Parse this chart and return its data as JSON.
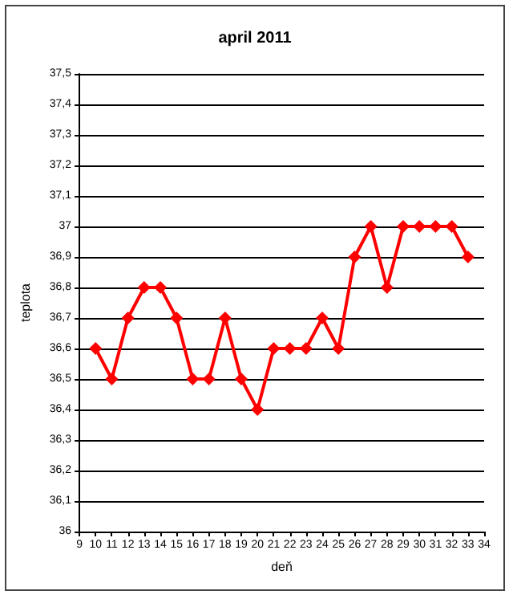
{
  "chart_data": {
    "type": "line",
    "title": "april 2011",
    "xlabel": "deň",
    "ylabel": "teplota",
    "x": [
      10,
      11,
      12,
      13,
      14,
      15,
      16,
      17,
      18,
      19,
      20,
      21,
      22,
      23,
      24,
      25,
      26,
      27,
      28,
      29,
      30,
      31,
      32,
      33
    ],
    "series": [
      {
        "color": "#ff0000",
        "values": [
          36.6,
          36.5,
          36.7,
          36.8,
          36.8,
          36.7,
          36.5,
          36.5,
          36.7,
          36.5,
          36.4,
          36.6,
          36.6,
          36.6,
          36.7,
          36.6,
          36.9,
          37,
          36.8,
          37,
          37,
          37,
          37,
          36.9
        ]
      }
    ],
    "xlim": [
      9,
      34
    ],
    "xticks": [
      9,
      10,
      11,
      12,
      13,
      14,
      15,
      16,
      17,
      18,
      19,
      20,
      21,
      22,
      23,
      24,
      25,
      26,
      27,
      28,
      29,
      30,
      31,
      32,
      33,
      34
    ],
    "ylim": [
      36,
      37.5
    ],
    "yticks": [
      {
        "value": 36,
        "label": "36"
      },
      {
        "value": 36.1,
        "label": "36,1"
      },
      {
        "value": 36.2,
        "label": "36,2"
      },
      {
        "value": 36.3,
        "label": "36,3"
      },
      {
        "value": 36.4,
        "label": "36,4"
      },
      {
        "value": 36.5,
        "label": "36,5"
      },
      {
        "value": 36.6,
        "label": "36,6"
      },
      {
        "value": 36.7,
        "label": "36,7"
      },
      {
        "value": 36.8,
        "label": "36,8"
      },
      {
        "value": 36.9,
        "label": "36,9"
      },
      {
        "value": 37,
        "label": "37"
      },
      {
        "value": 37.1,
        "label": "37,1"
      },
      {
        "value": 37.2,
        "label": "37,2"
      },
      {
        "value": 37.3,
        "label": "37,3"
      },
      {
        "value": 37.4,
        "label": "37,4"
      },
      {
        "value": 37.5,
        "label": "37,5"
      }
    ],
    "grid": "y",
    "marker": "diamond",
    "line_style": "solid"
  }
}
